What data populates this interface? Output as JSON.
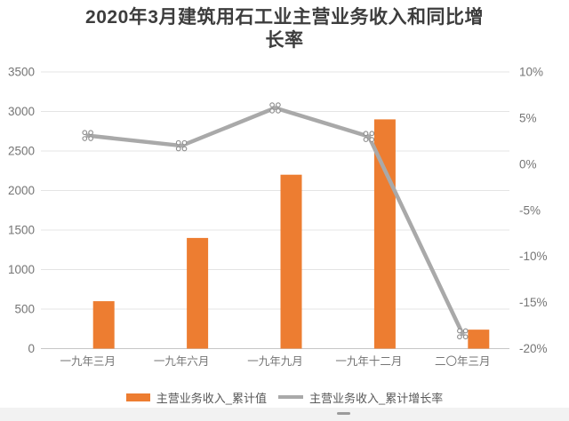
{
  "page": {
    "title_line1": "2020年3月建筑用石工业主营业务收入和同比增",
    "title_line2": "长率"
  },
  "chart_data": {
    "type": "bar",
    "subtype": "combo-bar-line-dual-axis",
    "title": "2020年3月建筑用石工业主营业务收入和同比增长率",
    "categories": [
      "一九年三月",
      "一九年六月",
      "一九年九月",
      "一九年十二月",
      "二〇年三月"
    ],
    "series": [
      {
        "name": "主营业务收入_累计值",
        "type": "bar",
        "axis": "left",
        "color": "#ED7D31",
        "values": [
          600,
          1400,
          2200,
          2900,
          240
        ]
      },
      {
        "name": "主营业务收入_累计增长率",
        "type": "line",
        "axis": "right",
        "color": "#A9A9A9",
        "values": [
          3.1,
          2.0,
          6.1,
          3.0,
          -18.4
        ]
      }
    ],
    "left_axis": {
      "min": 0,
      "max": 3500,
      "step": 500,
      "tick_labels": [
        "3500",
        "3000",
        "2500",
        "2000",
        "1500",
        "1000",
        "500",
        "0"
      ]
    },
    "right_axis": {
      "min": -20,
      "max": 10,
      "step": 5,
      "tick_labels": [
        "10%",
        "5%",
        "0%",
        "-5%",
        "-10%",
        "-15%",
        "-20%"
      ]
    },
    "grid": true,
    "legend_position": "bottom"
  },
  "legend": {
    "items": [
      {
        "label": "主营业务收入_累计值",
        "swatch": "bar",
        "color": "#ED7D31"
      },
      {
        "label": "主营业务收入_累计增长率",
        "swatch": "line",
        "color": "#A9A9A9"
      }
    ]
  },
  "colors": {
    "bar": "#ED7D31",
    "line": "#A9A9A9",
    "marker_stroke": "#8d8d8d",
    "gridline": "#e4e4e4",
    "baseline": "#c6c6c6",
    "axis_text": "#757575",
    "title_text": "#3d3d3d"
  }
}
